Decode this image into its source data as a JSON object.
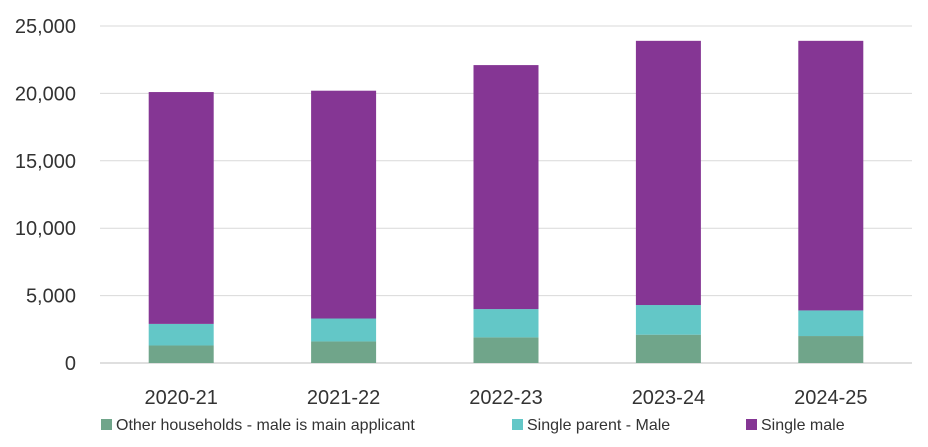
{
  "chart_data": {
    "type": "bar",
    "stacked": true,
    "categories": [
      "2020-21",
      "2021-22",
      "2022-23",
      "2023-24",
      "2024-25"
    ],
    "series": [
      {
        "name": "Other households - male is main applicant",
        "color": "#70a58a",
        "values": [
          1300,
          1600,
          1900,
          2100,
          2000
        ]
      },
      {
        "name": "Single parent - Male",
        "color": "#63c7c7",
        "values": [
          1600,
          1700,
          2100,
          2200,
          1900
        ]
      },
      {
        "name": "Single male",
        "color": "#853694",
        "values": [
          17200,
          16900,
          18100,
          19600,
          20000
        ]
      }
    ],
    "ylim": [
      0,
      25000
    ],
    "yticks": [
      0,
      5000,
      10000,
      15000,
      20000,
      25000
    ],
    "ytick_labels": [
      "0",
      "5,000",
      "10,000",
      "15,000",
      "20,000",
      "25,000"
    ],
    "grid": true,
    "legend_position": "bottom",
    "title": "",
    "xlabel": "",
    "ylabel": ""
  }
}
